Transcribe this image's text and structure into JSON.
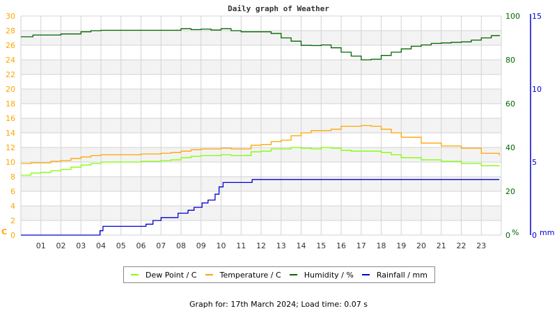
{
  "title": "Daily graph of Weather",
  "footer": "Graph for: 17th March 2024; Load time: 0.07 s",
  "colors": {
    "dew_point": "#7fff00",
    "temperature": "#ffa500",
    "humidity": "#006400",
    "rainfall": "#0000cd",
    "left_axis": "#ffa500",
    "humidity_axis": "#006400",
    "rain_axis": "#0000cd",
    "grid": "#d3d3d3",
    "band": "#f3f3f3"
  },
  "legend": [
    {
      "label": "Dew Point / C",
      "color": "#7fff00"
    },
    {
      "label": "Temperature / C",
      "color": "#ffa500"
    },
    {
      "label": "Humidity / %",
      "color": "#006400"
    },
    {
      "label": "Rainfall / mm",
      "color": "#0000cd"
    }
  ],
  "axes": {
    "left_unit": "C",
    "humidity_unit": "%",
    "rain_unit": "mm"
  },
  "chart_data": {
    "type": "line",
    "title": "Daily graph of Weather",
    "xlabel": "",
    "x_ticks": [
      "01",
      "02",
      "03",
      "04",
      "05",
      "06",
      "07",
      "08",
      "09",
      "10",
      "11",
      "12",
      "13",
      "14",
      "15",
      "16",
      "17",
      "18",
      "19",
      "20",
      "21",
      "22",
      "23"
    ],
    "xlim": [
      0,
      24
    ],
    "left_axis": {
      "label": "C",
      "ylim": [
        0,
        30
      ],
      "ticks": [
        0,
        2,
        4,
        6,
        8,
        10,
        12,
        14,
        16,
        18,
        20,
        22,
        24,
        26,
        28,
        30
      ]
    },
    "humidity_axis": {
      "label": "%",
      "ylim": [
        0,
        100
      ],
      "ticks": [
        0,
        20,
        40,
        60,
        80,
        100
      ]
    },
    "rain_axis": {
      "label": "mm",
      "ylim": [
        0,
        15
      ],
      "ticks": [
        0,
        5,
        10,
        15
      ]
    },
    "grid": true,
    "legend_position": "bottom",
    "series": [
      {
        "name": "Dew Point / C",
        "axis": "left",
        "x": [
          0,
          0.5,
          1,
          1.5,
          2,
          2.5,
          3,
          3.5,
          4,
          5,
          6,
          7,
          7.5,
          8,
          8.5,
          9,
          10,
          10.5,
          11,
          11.5,
          12,
          12.5,
          13,
          13.5,
          14,
          14.5,
          15,
          15.5,
          16,
          16.5,
          17,
          17.5,
          18,
          18.5,
          19,
          20,
          21,
          22,
          23,
          23.9
        ],
        "values": [
          8.2,
          8.5,
          8.6,
          8.8,
          9.0,
          9.3,
          9.6,
          9.8,
          10.0,
          10.0,
          10.1,
          10.2,
          10.3,
          10.6,
          10.8,
          10.9,
          11.0,
          10.9,
          10.9,
          11.4,
          11.5,
          11.8,
          11.8,
          12.0,
          11.9,
          11.8,
          12.0,
          11.9,
          11.6,
          11.5,
          11.5,
          11.5,
          11.3,
          11.0,
          10.6,
          10.3,
          10.1,
          9.8,
          9.5,
          9.4
        ]
      },
      {
        "name": "Temperature / C",
        "axis": "left",
        "x": [
          0,
          0.5,
          1,
          1.5,
          2,
          2.5,
          3,
          3.5,
          4,
          5,
          6,
          7,
          7.5,
          8,
          8.5,
          9,
          10,
          10.5,
          11,
          11.5,
          12,
          12.5,
          13,
          13.5,
          14,
          14.5,
          15,
          15.5,
          16,
          16.5,
          17,
          17.5,
          18,
          18.5,
          19,
          20,
          21,
          22,
          23,
          23.9
        ],
        "values": [
          9.8,
          9.9,
          9.9,
          10.1,
          10.2,
          10.5,
          10.7,
          10.9,
          11.0,
          11.0,
          11.1,
          11.2,
          11.3,
          11.5,
          11.7,
          11.8,
          11.9,
          11.8,
          11.8,
          12.3,
          12.4,
          12.8,
          13.0,
          13.6,
          14.0,
          14.3,
          14.3,
          14.5,
          14.9,
          14.9,
          15.0,
          14.9,
          14.5,
          14.0,
          13.4,
          12.6,
          12.2,
          11.9,
          11.2,
          10.9
        ]
      },
      {
        "name": "Humidity / %",
        "axis": "humidity",
        "x": [
          0,
          0.6,
          1,
          2,
          3,
          3.5,
          4,
          5,
          6,
          7,
          7.5,
          8,
          8.5,
          9,
          9.5,
          10,
          10.5,
          11,
          11.5,
          12,
          12.5,
          13,
          13.5,
          14,
          14.5,
          15,
          15.5,
          16,
          16.5,
          17,
          17.5,
          18,
          18.5,
          19,
          19.5,
          20,
          20.5,
          21,
          21.5,
          22,
          22.5,
          23,
          23.5,
          23.9
        ],
        "values": [
          90.5,
          91.3,
          91.3,
          91.8,
          92.8,
          93.3,
          93.5,
          93.5,
          93.5,
          93.5,
          93.5,
          94.2,
          93.8,
          94.0,
          93.6,
          94.2,
          93.3,
          92.8,
          92.8,
          92.8,
          92.0,
          90.0,
          88.5,
          86.6,
          86.5,
          86.8,
          85.5,
          83.5,
          81.7,
          80.0,
          80.3,
          82.0,
          83.5,
          85.0,
          86.2,
          86.8,
          87.5,
          87.7,
          88.0,
          88.2,
          89.0,
          90.0,
          91.0,
          91.3
        ]
      },
      {
        "name": "Rainfall / mm",
        "axis": "rain",
        "x": [
          0,
          3.9,
          3.95,
          4.05,
          4.1,
          6.2,
          6.25,
          6.55,
          6.6,
          6.95,
          7.0,
          7.8,
          7.85,
          8.3,
          8.35,
          8.6,
          8.65,
          9.0,
          9.05,
          9.3,
          9.35,
          9.6,
          9.7,
          9.85,
          9.9,
          10.05,
          10.1,
          11.5,
          11.55,
          23.9
        ],
        "values": [
          0,
          0,
          0.3,
          0.3,
          0.6,
          0.6,
          0.75,
          0.75,
          1.0,
          1.0,
          1.2,
          1.2,
          1.5,
          1.5,
          1.7,
          1.7,
          1.9,
          1.9,
          2.2,
          2.2,
          2.4,
          2.4,
          2.8,
          2.8,
          3.3,
          3.3,
          3.6,
          3.6,
          3.8,
          3.8
        ]
      }
    ]
  }
}
